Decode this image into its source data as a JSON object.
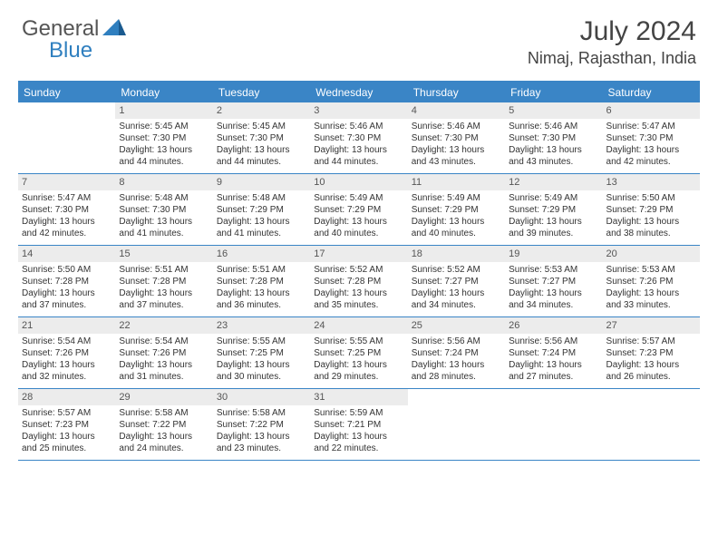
{
  "logo": {
    "text1": "General",
    "text2": "Blue"
  },
  "title": "July 2024",
  "location": "Nimaj, Rajasthan, India",
  "weekdays": [
    "Sunday",
    "Monday",
    "Tuesday",
    "Wednesday",
    "Thursday",
    "Friday",
    "Saturday"
  ],
  "colors": {
    "header_blue": "#3a85c6",
    "daynum_bg": "#ececec",
    "text": "#333333"
  },
  "weeks": [
    [
      null,
      {
        "n": "1",
        "sr": "5:45 AM",
        "ss": "7:30 PM",
        "dl": "13 hours and 44 minutes."
      },
      {
        "n": "2",
        "sr": "5:45 AM",
        "ss": "7:30 PM",
        "dl": "13 hours and 44 minutes."
      },
      {
        "n": "3",
        "sr": "5:46 AM",
        "ss": "7:30 PM",
        "dl": "13 hours and 44 minutes."
      },
      {
        "n": "4",
        "sr": "5:46 AM",
        "ss": "7:30 PM",
        "dl": "13 hours and 43 minutes."
      },
      {
        "n": "5",
        "sr": "5:46 AM",
        "ss": "7:30 PM",
        "dl": "13 hours and 43 minutes."
      },
      {
        "n": "6",
        "sr": "5:47 AM",
        "ss": "7:30 PM",
        "dl": "13 hours and 42 minutes."
      }
    ],
    [
      {
        "n": "7",
        "sr": "5:47 AM",
        "ss": "7:30 PM",
        "dl": "13 hours and 42 minutes."
      },
      {
        "n": "8",
        "sr": "5:48 AM",
        "ss": "7:30 PM",
        "dl": "13 hours and 41 minutes."
      },
      {
        "n": "9",
        "sr": "5:48 AM",
        "ss": "7:29 PM",
        "dl": "13 hours and 41 minutes."
      },
      {
        "n": "10",
        "sr": "5:49 AM",
        "ss": "7:29 PM",
        "dl": "13 hours and 40 minutes."
      },
      {
        "n": "11",
        "sr": "5:49 AM",
        "ss": "7:29 PM",
        "dl": "13 hours and 40 minutes."
      },
      {
        "n": "12",
        "sr": "5:49 AM",
        "ss": "7:29 PM",
        "dl": "13 hours and 39 minutes."
      },
      {
        "n": "13",
        "sr": "5:50 AM",
        "ss": "7:29 PM",
        "dl": "13 hours and 38 minutes."
      }
    ],
    [
      {
        "n": "14",
        "sr": "5:50 AM",
        "ss": "7:28 PM",
        "dl": "13 hours and 37 minutes."
      },
      {
        "n": "15",
        "sr": "5:51 AM",
        "ss": "7:28 PM",
        "dl": "13 hours and 37 minutes."
      },
      {
        "n": "16",
        "sr": "5:51 AM",
        "ss": "7:28 PM",
        "dl": "13 hours and 36 minutes."
      },
      {
        "n": "17",
        "sr": "5:52 AM",
        "ss": "7:28 PM",
        "dl": "13 hours and 35 minutes."
      },
      {
        "n": "18",
        "sr": "5:52 AM",
        "ss": "7:27 PM",
        "dl": "13 hours and 34 minutes."
      },
      {
        "n": "19",
        "sr": "5:53 AM",
        "ss": "7:27 PM",
        "dl": "13 hours and 34 minutes."
      },
      {
        "n": "20",
        "sr": "5:53 AM",
        "ss": "7:26 PM",
        "dl": "13 hours and 33 minutes."
      }
    ],
    [
      {
        "n": "21",
        "sr": "5:54 AM",
        "ss": "7:26 PM",
        "dl": "13 hours and 32 minutes."
      },
      {
        "n": "22",
        "sr": "5:54 AM",
        "ss": "7:26 PM",
        "dl": "13 hours and 31 minutes."
      },
      {
        "n": "23",
        "sr": "5:55 AM",
        "ss": "7:25 PM",
        "dl": "13 hours and 30 minutes."
      },
      {
        "n": "24",
        "sr": "5:55 AM",
        "ss": "7:25 PM",
        "dl": "13 hours and 29 minutes."
      },
      {
        "n": "25",
        "sr": "5:56 AM",
        "ss": "7:24 PM",
        "dl": "13 hours and 28 minutes."
      },
      {
        "n": "26",
        "sr": "5:56 AM",
        "ss": "7:24 PM",
        "dl": "13 hours and 27 minutes."
      },
      {
        "n": "27",
        "sr": "5:57 AM",
        "ss": "7:23 PM",
        "dl": "13 hours and 26 minutes."
      }
    ],
    [
      {
        "n": "28",
        "sr": "5:57 AM",
        "ss": "7:23 PM",
        "dl": "13 hours and 25 minutes."
      },
      {
        "n": "29",
        "sr": "5:58 AM",
        "ss": "7:22 PM",
        "dl": "13 hours and 24 minutes."
      },
      {
        "n": "30",
        "sr": "5:58 AM",
        "ss": "7:22 PM",
        "dl": "13 hours and 23 minutes."
      },
      {
        "n": "31",
        "sr": "5:59 AM",
        "ss": "7:21 PM",
        "dl": "13 hours and 22 minutes."
      },
      null,
      null,
      null
    ]
  ],
  "labels": {
    "sunrise": "Sunrise: ",
    "sunset": "Sunset: ",
    "daylight": "Daylight: "
  }
}
